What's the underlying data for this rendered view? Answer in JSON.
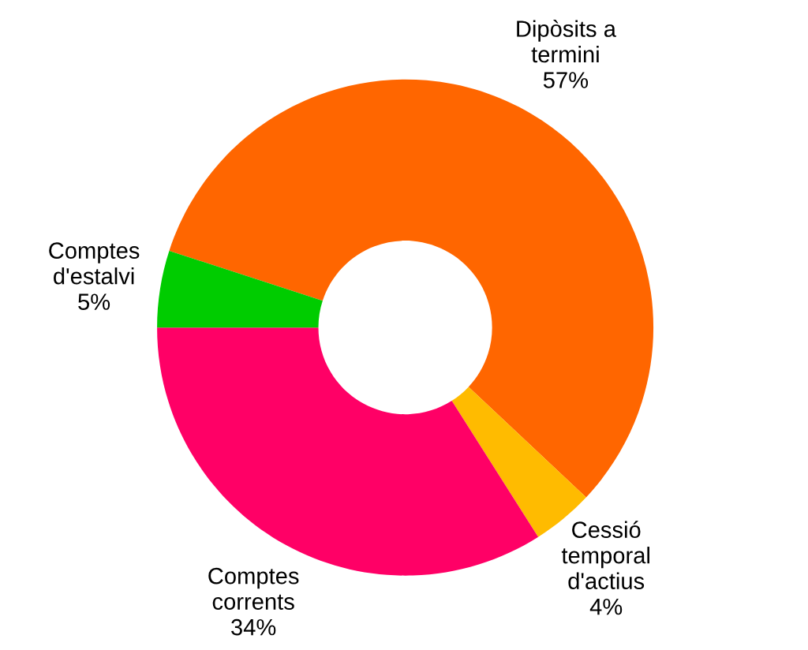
{
  "chart_data": {
    "type": "donut",
    "categories": [
      "Dipòsits a\ntermini",
      "Cessió\ntemporal\nd'actius",
      "Comptes\ncorrents",
      "Comptes\nd'estalvi"
    ],
    "values": [
      57,
      4,
      34,
      5
    ],
    "colors": [
      "#ff6600",
      "#ffbb00",
      "#ff0066",
      "#00cc00"
    ],
    "value_labels": [
      "57%",
      "4%",
      "34%",
      "5%"
    ]
  }
}
